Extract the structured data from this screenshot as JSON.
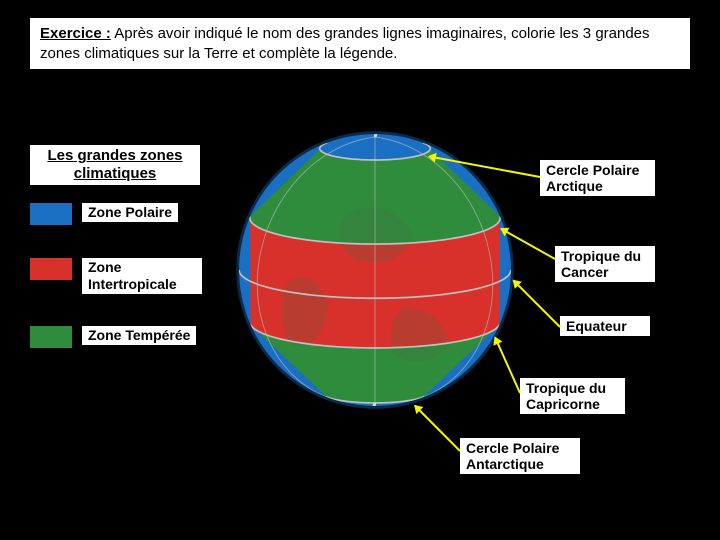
{
  "instruction": {
    "label": "Exercice :",
    "text": " Après avoir indiqué le nom des grandes lignes imaginaires, colorie les 3 grandes zones climatiques sur la Terre et complète la légende."
  },
  "section_title": "Les grandes zones climatiques",
  "legend": {
    "polar": {
      "label": "Zone Polaire",
      "color": "#1b6fc2"
    },
    "intertropical": {
      "label": "Zone Intertropicale",
      "color": "#d8302a"
    },
    "temperate": {
      "label": "Zone Tempérée",
      "color": "#2f8c3c"
    }
  },
  "annotations": {
    "arctic": "Cercle Polaire Arctique",
    "cancer": "Tropique du Cancer",
    "equator": "Equateur",
    "capricorn": "Tropique du Capricorne",
    "antarctic": "Cercle Polaire Antarctique"
  },
  "globe": {
    "colors": {
      "polar": "#1b6fc2",
      "temperate": "#2f8c3c",
      "intertropical": "#d8302a",
      "line": "#c0c0c0",
      "arrow": "#f5f500",
      "outline_shadow": "#0a2a4a",
      "land_hint": "#4a6a4a"
    },
    "bands": [
      {
        "zone": "polar",
        "from": -90,
        "to": -66
      },
      {
        "zone": "temperate",
        "from": -66,
        "to": -23
      },
      {
        "zone": "intertropical",
        "from": -23,
        "to": 23
      },
      {
        "zone": "temperate",
        "from": 23,
        "to": 66
      },
      {
        "zone": "polar",
        "from": 66,
        "to": 90
      }
    ],
    "tilt_deg": 12
  }
}
